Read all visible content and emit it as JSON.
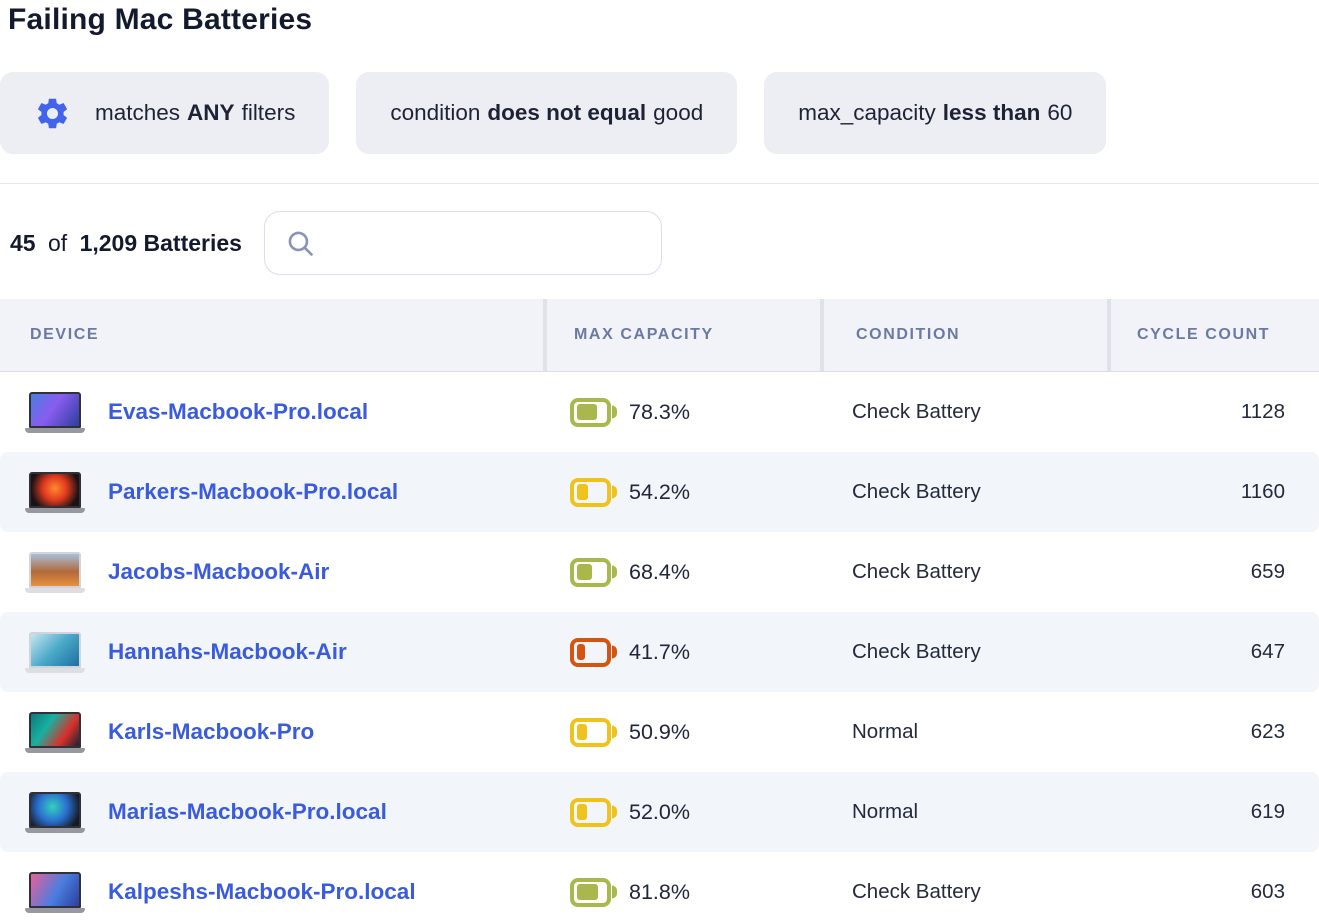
{
  "title": "Failing Mac Batteries",
  "filter_bar": {
    "match_chip": {
      "prefix": "matches",
      "bold": "ANY",
      "suffix": "filters"
    },
    "chips": [
      {
        "prefix": "condition",
        "bold": "does not equal",
        "suffix": "good"
      },
      {
        "prefix": "max_capacity",
        "bold": "less than",
        "suffix": "60"
      }
    ]
  },
  "summary": {
    "shown": "45",
    "separator": "of",
    "total": "1,209 Batteries"
  },
  "search": {
    "placeholder": "",
    "value": ""
  },
  "table": {
    "headers": [
      "Device",
      "Max Capacity",
      "Condition",
      "Cycle Count"
    ],
    "rows": [
      {
        "device": "Evas-Macbook-Pro.local",
        "max_capacity": "78.3%",
        "fill_pct": 78,
        "level": "green",
        "condition": "Check Battery",
        "cycle_count": "1128",
        "chassis": "spacegray",
        "wallpaper": "linear-gradient(125deg,#4a7de0 0%,#8a5cf0 45%,#2b3f9e 100%)"
      },
      {
        "device": "Parkers-Macbook-Pro.local",
        "max_capacity": "54.2%",
        "fill_pct": 50,
        "level": "yellow",
        "condition": "Check Battery",
        "cycle_count": "1160",
        "chassis": "spacegray",
        "wallpaper": "radial-gradient(circle at 50% 45%,#ff8a30 0%,#e03a1e 40%,#1a1216 80%)"
      },
      {
        "device": "Jacobs-Macbook-Air",
        "max_capacity": "68.4%",
        "fill_pct": 62,
        "level": "green",
        "condition": "Check Battery",
        "cycle_count": "659",
        "chassis": "silver",
        "wallpaper": "linear-gradient(180deg,#a8bedb 0%,#b06a3a 55%,#e8913f 100%)"
      },
      {
        "device": "Hannahs-Macbook-Air",
        "max_capacity": "41.7%",
        "fill_pct": 40,
        "level": "orange",
        "condition": "Check Battery",
        "cycle_count": "647",
        "chassis": "silver",
        "wallpaper": "linear-gradient(135deg,#c5e6ef 0%,#4aa9c8 50%,#1d6fa0 100%)"
      },
      {
        "device": "Karls-Macbook-Pro",
        "max_capacity": "50.9%",
        "fill_pct": 46,
        "level": "yellow",
        "condition": "Normal",
        "cycle_count": "623",
        "chassis": "spacegray",
        "wallpaper": "linear-gradient(125deg,#0e7a7a 0%,#18b0a0 35%,#d8302a 70%,#1a2430 100%)"
      },
      {
        "device": "Marias-Macbook-Pro.local",
        "max_capacity": "52.0%",
        "fill_pct": 46,
        "level": "yellow",
        "condition": "Normal",
        "cycle_count": "619",
        "chassis": "spacegray",
        "wallpaper": "radial-gradient(circle at 45% 40%,#35d0c0 0%,#2a6fd0 45%,#151a24 85%)"
      },
      {
        "device": "Kalpeshs-Macbook-Pro.local",
        "max_capacity": "81.8%",
        "fill_pct": 80,
        "level": "green",
        "condition": "Check Battery",
        "cycle_count": "603",
        "chassis": "spacegray",
        "wallpaper": "linear-gradient(120deg,#e8609a 0%,#4a7de0 55%,#2b3f9e 100%)"
      }
    ]
  },
  "colors": {
    "accent_blue": "#4263eb",
    "link_blue": "#3a5bdc",
    "battery_green": "#a9b84c",
    "battery_yellow": "#eec41c",
    "battery_orange": "#d4550f",
    "chassis_spacegray_bezel": "#2f3136",
    "chassis_spacegray_base": "#96999f",
    "chassis_silver_bezel": "#d2d4d9",
    "chassis_silver_base": "#dcdee2"
  },
  "icons": {
    "gear": "settings-gear",
    "search": "magnifier"
  }
}
